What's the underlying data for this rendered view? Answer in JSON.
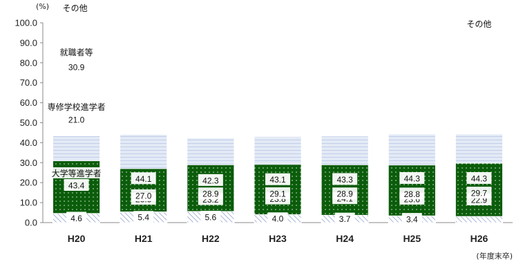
{
  "chart_data": {
    "type": "bar",
    "stacked": true,
    "y_unit": "(%)",
    "x_note": "(年度末卒)",
    "ylim": [
      0,
      100
    ],
    "y_ticks": [
      "0.0",
      "10.0",
      "20.0",
      "30.0",
      "40.0",
      "50.0",
      "60.0",
      "70.0",
      "80.0",
      "90.0",
      "100.0"
    ],
    "categories": [
      "H20",
      "H21",
      "H22",
      "H23",
      "H24",
      "H25",
      "H26"
    ],
    "series": [
      {
        "name": "大学等進学者",
        "values": [
          43.4,
          44.1,
          42.3,
          43.1,
          43.3,
          44.3,
          44.3
        ],
        "labels": [
          "43.4",
          "44.1",
          "42.3",
          "43.1",
          "43.3",
          "44.3",
          "44.3"
        ],
        "color": "#dfe7f4"
      },
      {
        "name": "専修学校進学者",
        "values": [
          21.0,
          23.5,
          23.2,
          23.8,
          24.1,
          23.6,
          22.9
        ],
        "labels": [
          "21.0",
          "23.5",
          "23.2",
          "23.8",
          "24.1",
          "23.6",
          "22.9"
        ],
        "color": "#dff5dc"
      },
      {
        "name": "就職者等",
        "values": [
          30.9,
          27.0,
          28.9,
          29.1,
          28.9,
          28.8,
          29.7
        ],
        "labels": [
          "30.9",
          "27.0",
          "28.9",
          "29.1",
          "28.9",
          "28.8",
          "29.7"
        ],
        "color": "#0b5c0b"
      },
      {
        "name": "その他",
        "values": [
          4.6,
          5.4,
          5.6,
          4.0,
          3.7,
          3.4,
          3.1
        ],
        "labels": [
          "4.6",
          "5.4",
          "5.6",
          "4.0",
          "3.7",
          "3.4",
          ""
        ],
        "color": "#c7d3ec"
      }
    ],
    "series_labels": [
      {
        "text": "大学等進学者"
      },
      {
        "text": "専修学校進学者"
      },
      {
        "text": "就職者等"
      },
      {
        "text": "その他"
      },
      {
        "text": "その他"
      }
    ],
    "grid": false
  }
}
